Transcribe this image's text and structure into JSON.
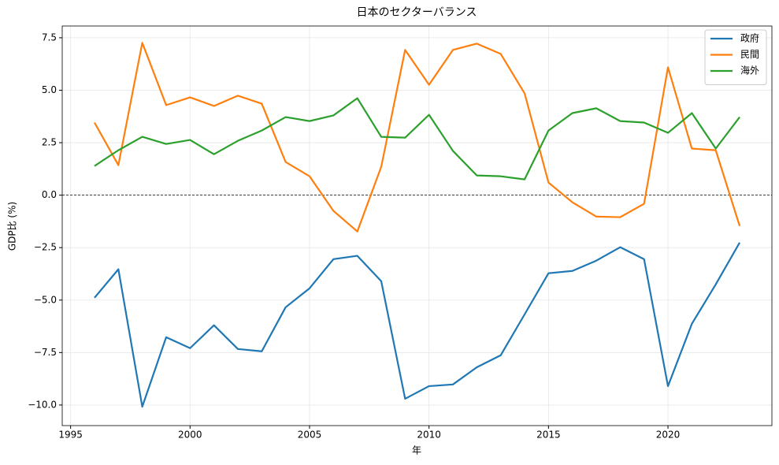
{
  "chart_data": {
    "type": "line",
    "title": "日本のセクターバランス",
    "x_label": "年",
    "y_label": "GDP比 (%)",
    "x": [
      1996,
      1997,
      1998,
      1999,
      2000,
      2001,
      2002,
      2003,
      2004,
      2005,
      2006,
      2007,
      2008,
      2009,
      2010,
      2011,
      2012,
      2013,
      2014,
      2015,
      2016,
      2017,
      2018,
      2019,
      2020,
      2021,
      2022,
      2023
    ],
    "series": [
      {
        "name": "政府",
        "color": "#1f77b4",
        "values": [
          -4.89,
          -3.53,
          -10.08,
          -6.77,
          -7.29,
          -6.2,
          -7.33,
          -7.44,
          -5.34,
          -4.44,
          -3.05,
          -2.89,
          -4.1,
          -9.7,
          -9.1,
          -9.02,
          -8.2,
          -7.63,
          -5.68,
          -3.72,
          -3.61,
          -3.12,
          -2.48,
          -3.05,
          -9.1,
          -6.13,
          -4.25,
          -2.26
        ]
      },
      {
        "name": "民間",
        "color": "#ff7f0e",
        "values": [
          3.46,
          1.43,
          7.26,
          4.29,
          4.66,
          4.25,
          4.74,
          4.36,
          1.58,
          0.9,
          -0.75,
          -1.73,
          1.35,
          6.92,
          5.26,
          6.92,
          7.22,
          6.73,
          4.85,
          0.6,
          -0.34,
          -1.02,
          -1.05,
          -0.41,
          6.09,
          2.22,
          2.14,
          -1.47
        ]
      },
      {
        "name": "海外",
        "color": "#2ca02c",
        "values": [
          1.39,
          2.14,
          2.78,
          2.44,
          2.63,
          1.95,
          2.59,
          3.08,
          3.72,
          3.53,
          3.8,
          4.62,
          2.78,
          2.74,
          3.83,
          2.11,
          0.94,
          0.9,
          0.75,
          3.08,
          3.91,
          4.14,
          3.53,
          3.46,
          2.97,
          3.91,
          2.22,
          3.72
        ]
      }
    ],
    "xlim": [
      1994.65,
      2024.35
    ],
    "ylim": [
      -10.98,
      8.06
    ],
    "xticks": [
      1995,
      2000,
      2005,
      2010,
      2015,
      2020
    ],
    "yticks": [
      {
        "value": -10,
        "label": "−10.0"
      },
      {
        "value": -7.5,
        "label": "−7.5"
      },
      {
        "value": -5,
        "label": "−5.0"
      },
      {
        "value": -2.5,
        "label": "−2.5"
      },
      {
        "value": 0,
        "label": "0.0"
      },
      2.5,
      {
        "value": 5,
        "label": "5.0"
      },
      7.5
    ],
    "hline": 0,
    "grid": true,
    "legend": "upper right"
  }
}
